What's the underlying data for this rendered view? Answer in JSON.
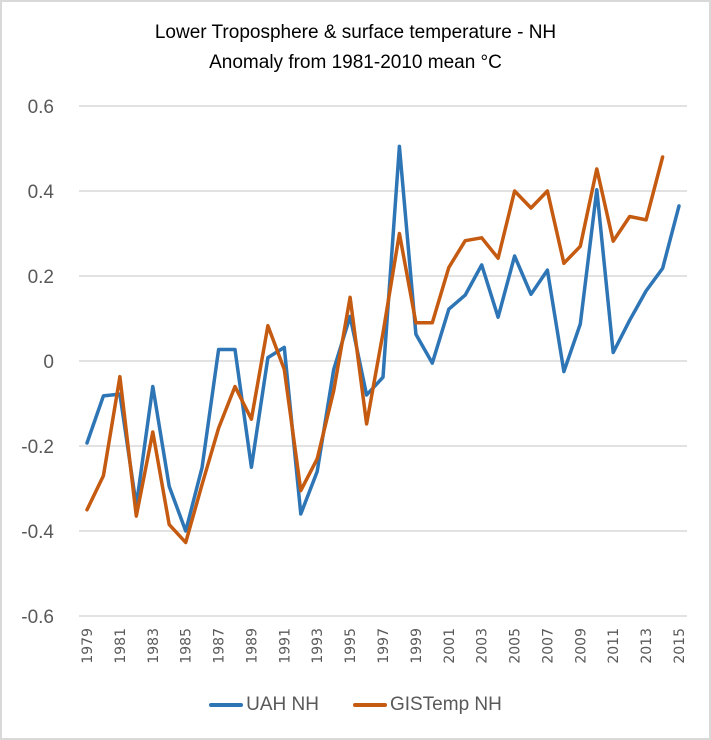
{
  "chart_data": {
    "type": "line",
    "title": "Lower Troposphere  & surface temperature  - NH",
    "subtitle": "Anomaly  from 1981-2010 mean  °C",
    "xlabel": "",
    "ylabel": "",
    "ylim": [
      -0.6,
      0.6
    ],
    "yticks": [
      0.6,
      0.4,
      0.2,
      0,
      -0.2,
      -0.4,
      -0.6
    ],
    "ytick_labels": [
      "0.6",
      "0.4",
      "0.2",
      "0",
      "-0.2",
      "-0.4",
      "-0.6"
    ],
    "x": [
      1979,
      1980,
      1981,
      1982,
      1983,
      1984,
      1985,
      1986,
      1987,
      1988,
      1989,
      1990,
      1991,
      1992,
      1993,
      1994,
      1995,
      1996,
      1997,
      1998,
      1999,
      2000,
      2001,
      2002,
      2003,
      2004,
      2005,
      2006,
      2007,
      2008,
      2009,
      2010,
      2011,
      2012,
      2013,
      2014,
      2015
    ],
    "xtick_labels": [
      "1979",
      "1981",
      "1983",
      "1985",
      "1987",
      "1989",
      "1991",
      "1993",
      "1995",
      "1997",
      "1999",
      "2001",
      "2003",
      "2005",
      "2007",
      "2009",
      "2011",
      "2013",
      "2015"
    ],
    "grid": true,
    "legend_position": "bottom",
    "series": [
      {
        "name": "UAH NH",
        "color": "#2e75b6",
        "values": [
          -0.193,
          -0.082,
          -0.078,
          -0.34,
          -0.06,
          -0.295,
          -0.4,
          -0.25,
          0.027,
          0.027,
          -0.25,
          0.008,
          0.032,
          -0.36,
          -0.26,
          -0.02,
          0.105,
          -0.08,
          -0.038,
          0.505,
          0.063,
          -0.005,
          0.122,
          0.155,
          0.226,
          0.103,
          0.247,
          0.157,
          0.214,
          -0.025,
          0.087,
          0.403,
          0.02,
          0.096,
          0.165,
          0.218,
          0.365
        ]
      },
      {
        "name": "GISTemp NH",
        "color": "#c55a11",
        "values": [
          -0.35,
          -0.27,
          -0.037,
          -0.365,
          -0.167,
          -0.385,
          -0.427,
          -0.29,
          -0.158,
          -0.06,
          -0.137,
          0.083,
          -0.02,
          -0.305,
          -0.23,
          -0.07,
          0.15,
          -0.148,
          0.066,
          0.3,
          0.09,
          0.09,
          0.22,
          0.283,
          0.29,
          0.242,
          0.4,
          0.36,
          0.4,
          0.23,
          0.27,
          0.452,
          0.282,
          0.34,
          0.332,
          0.48,
          null
        ]
      }
    ]
  }
}
